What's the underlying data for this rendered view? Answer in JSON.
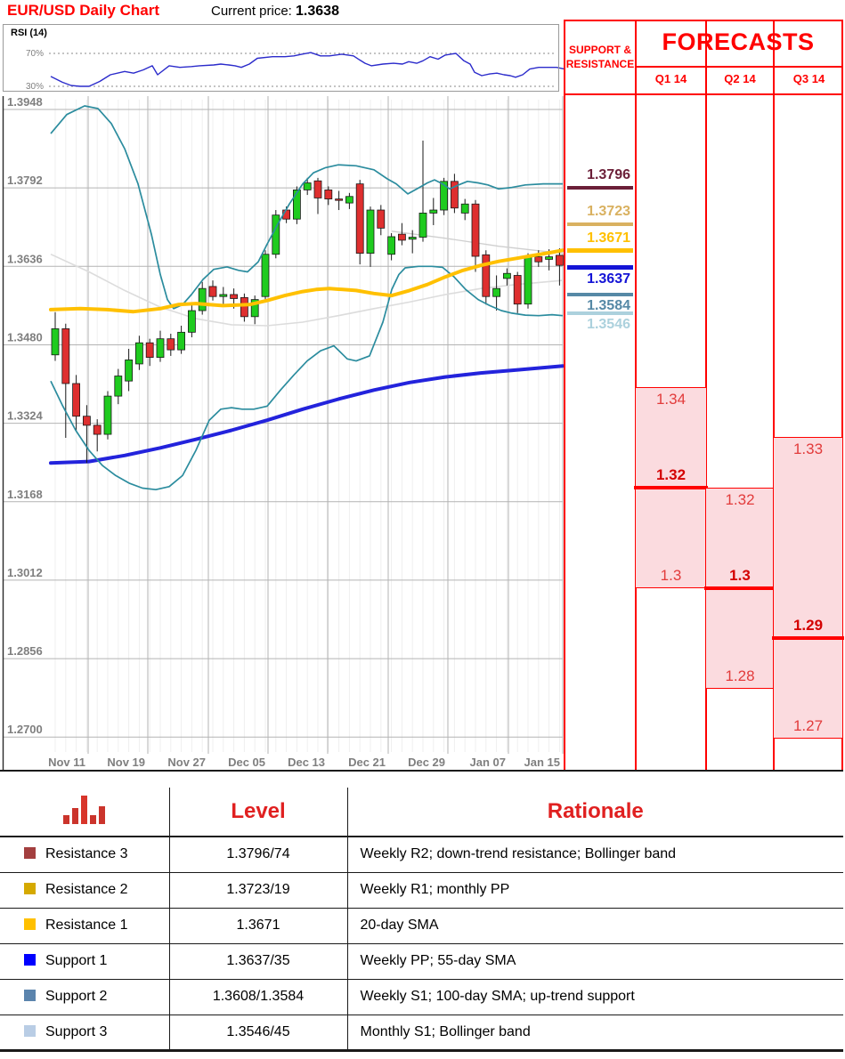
{
  "header": {
    "title": "EUR/USD Daily Chart",
    "current_price_label": "Current price:",
    "current_price": "1.3638"
  },
  "rsi": {
    "label": "RSI (14)",
    "upper_label": "70%",
    "lower_label": "30%",
    "upper": 70,
    "lower": 30,
    "line_color": "#2B2BCB",
    "points": [
      [
        57,
        42
      ],
      [
        70,
        35
      ],
      [
        80,
        31
      ],
      [
        90,
        30
      ],
      [
        100,
        30
      ],
      [
        112,
        36
      ],
      [
        124,
        44
      ],
      [
        140,
        48
      ],
      [
        150,
        46
      ],
      [
        161,
        50
      ],
      [
        171,
        55
      ],
      [
        177,
        44
      ],
      [
        190,
        55
      ],
      [
        202,
        53
      ],
      [
        215,
        54
      ],
      [
        224,
        55
      ],
      [
        240,
        56
      ],
      [
        248,
        57
      ],
      [
        257,
        56
      ],
      [
        264,
        55
      ],
      [
        271,
        53
      ],
      [
        280,
        57
      ],
      [
        289,
        64
      ],
      [
        306,
        66
      ],
      [
        320,
        66
      ],
      [
        330,
        67
      ],
      [
        339,
        69
      ],
      [
        349,
        71
      ],
      [
        360,
        67
      ],
      [
        370,
        67
      ],
      [
        384,
        69
      ],
      [
        397,
        67
      ],
      [
        404,
        62
      ],
      [
        410,
        58
      ],
      [
        417,
        55
      ],
      [
        430,
        57
      ],
      [
        442,
        58
      ],
      [
        452,
        57
      ],
      [
        459,
        60
      ],
      [
        468,
        58
      ],
      [
        475,
        61
      ],
      [
        483,
        66
      ],
      [
        492,
        63
      ],
      [
        500,
        68
      ],
      [
        512,
        70
      ],
      [
        521,
        61
      ],
      [
        528,
        57
      ],
      [
        533,
        47
      ],
      [
        541,
        43
      ],
      [
        550,
        45
      ],
      [
        558,
        46
      ],
      [
        566,
        44
      ],
      [
        573,
        43
      ],
      [
        579,
        41
      ],
      [
        587,
        44
      ],
      [
        595,
        51
      ],
      [
        605,
        53
      ],
      [
        615,
        53
      ],
      [
        625,
        53
      ],
      [
        634,
        51
      ]
    ]
  },
  "chart_data": {
    "type": "candlestick",
    "title": "EUR/USD Daily Chart",
    "y_axis": {
      "ticks": [
        1.3948,
        1.3792,
        1.3636,
        1.348,
        1.3324,
        1.3168,
        1.3012,
        1.2856,
        1.27
      ],
      "tick_labels": [
        "1.3948",
        "1.3792",
        "1.3636",
        "1.3480",
        "1.3324",
        "1.3168",
        "1.3012",
        "1.2856",
        "1.2700"
      ],
      "min": 1.27,
      "max": 1.3948
    },
    "x_axis": {
      "labels": [
        "Nov 11",
        "Nov 19",
        "Nov 27",
        "Dec 05",
        "Dec 13",
        "Dec 21",
        "Dec 29",
        "Jan 07",
        "Jan 15"
      ]
    },
    "colors": {
      "up": "#1FCB1F",
      "down": "#DE2F2F",
      "wick": "#1a1a1a",
      "sma20": "#FFC000",
      "sma55": "#2323DC",
      "sma100": "#DCDCDC",
      "bollinger": "#2B8C9E",
      "grid": "#B3B3B3",
      "grid_faint": "#EFEFEF",
      "axis_text": "#7F7F7F"
    },
    "candles": [
      [
        1.346,
        1.3545,
        1.3448,
        1.3512
      ],
      [
        1.3512,
        1.3522,
        1.3295,
        1.3403
      ],
      [
        1.3403,
        1.342,
        1.3308,
        1.3338
      ],
      [
        1.3338,
        1.336,
        1.3245,
        1.332
      ],
      [
        1.332,
        1.3332,
        1.3268,
        1.3302
      ],
      [
        1.3302,
        1.3388,
        1.3292,
        1.3378
      ],
      [
        1.3378,
        1.3432,
        1.3362,
        1.3418
      ],
      [
        1.3408,
        1.3472,
        1.3388,
        1.345
      ],
      [
        1.3442,
        1.3498,
        1.343,
        1.3484
      ],
      [
        1.3484,
        1.3492,
        1.3438,
        1.3455
      ],
      [
        1.3455,
        1.3508,
        1.3446,
        1.3492
      ],
      [
        1.3492,
        1.3502,
        1.3458,
        1.347
      ],
      [
        1.347,
        1.3518,
        1.3462,
        1.3505
      ],
      [
        1.3505,
        1.3562,
        1.3495,
        1.3548
      ],
      [
        1.3548,
        1.3605,
        1.354,
        1.3592
      ],
      [
        1.3596,
        1.3608,
        1.3568,
        1.3576
      ],
      [
        1.3576,
        1.3595,
        1.3558,
        1.358
      ],
      [
        1.358,
        1.3592,
        1.3552,
        1.3572
      ],
      [
        1.3574,
        1.3582,
        1.3526,
        1.3536
      ],
      [
        1.3536,
        1.3578,
        1.3521,
        1.357
      ],
      [
        1.3576,
        1.3668,
        1.357,
        1.366
      ],
      [
        1.366,
        1.3748,
        1.3652,
        1.3738
      ],
      [
        1.3748,
        1.3755,
        1.3722,
        1.373
      ],
      [
        1.373,
        1.3795,
        1.372,
        1.3788
      ],
      [
        1.3788,
        1.3812,
        1.3778,
        1.3802
      ],
      [
        1.3806,
        1.3812,
        1.374,
        1.3772
      ],
      [
        1.3788,
        1.3795,
        1.3758,
        1.377
      ],
      [
        1.377,
        1.3786,
        1.3748,
        1.3768
      ],
      [
        1.3762,
        1.3782,
        1.375,
        1.3775
      ],
      [
        1.38,
        1.3808,
        1.364,
        1.3662
      ],
      [
        1.3662,
        1.3755,
        1.3635,
        1.3748
      ],
      [
        1.3748,
        1.3758,
        1.3698,
        1.3712
      ],
      [
        1.366,
        1.3702,
        1.3648,
        1.3695
      ],
      [
        1.37,
        1.3722,
        1.3678,
        1.3688
      ],
      [
        1.369,
        1.3708,
        1.3662,
        1.3694
      ],
      [
        1.3694,
        1.3886,
        1.3685,
        1.3742
      ],
      [
        1.3742,
        1.3772,
        1.3718,
        1.3748
      ],
      [
        1.3748,
        1.3812,
        1.3738,
        1.3805
      ],
      [
        1.3805,
        1.382,
        1.3742,
        1.3752
      ],
      [
        1.3742,
        1.377,
        1.3728,
        1.376
      ],
      [
        1.376,
        1.3768,
        1.3625,
        1.3656
      ],
      [
        1.3659,
        1.3668,
        1.356,
        1.3576
      ],
      [
        1.3576,
        1.3618,
        1.3548,
        1.3592
      ],
      [
        1.3612,
        1.3632,
        1.3598,
        1.3622
      ],
      [
        1.3618,
        1.3625,
        1.3543,
        1.3561
      ],
      [
        1.3561,
        1.3662,
        1.3552,
        1.3655
      ],
      [
        1.3655,
        1.3668,
        1.3635,
        1.3645
      ],
      [
        1.365,
        1.367,
        1.3628,
        1.3655
      ],
      [
        1.3658,
        1.3672,
        1.3598,
        1.3638
      ]
    ],
    "overlays": {
      "sma20": [
        [
          57,
          1.355
        ],
        [
          90,
          1.3552
        ],
        [
          120,
          1.355
        ],
        [
          150,
          1.3546
        ],
        [
          180,
          1.3552
        ],
        [
          200,
          1.356
        ],
        [
          220,
          1.3562
        ],
        [
          250,
          1.3558
        ],
        [
          280,
          1.356
        ],
        [
          300,
          1.3568
        ],
        [
          320,
          1.3578
        ],
        [
          340,
          1.3586
        ],
        [
          355,
          1.359
        ],
        [
          370,
          1.3592
        ],
        [
          385,
          1.359
        ],
        [
          400,
          1.3588
        ],
        [
          420,
          1.3582
        ],
        [
          440,
          1.3578
        ],
        [
          460,
          1.3588
        ],
        [
          480,
          1.36
        ],
        [
          500,
          1.3615
        ],
        [
          520,
          1.3628
        ],
        [
          540,
          1.3638
        ],
        [
          560,
          1.3646
        ],
        [
          580,
          1.3652
        ],
        [
          600,
          1.3658
        ],
        [
          620,
          1.3664
        ],
        [
          632,
          1.3668
        ]
      ],
      "sma55": [
        [
          57,
          1.3245
        ],
        [
          100,
          1.3248
        ],
        [
          140,
          1.326
        ],
        [
          180,
          1.3275
        ],
        [
          220,
          1.3292
        ],
        [
          260,
          1.331
        ],
        [
          300,
          1.333
        ],
        [
          340,
          1.3352
        ],
        [
          380,
          1.3372
        ],
        [
          420,
          1.339
        ],
        [
          460,
          1.3405
        ],
        [
          500,
          1.3416
        ],
        [
          540,
          1.3424
        ],
        [
          580,
          1.343
        ],
        [
          632,
          1.3438
        ]
      ],
      "sma100": [
        [
          57,
          1.366
        ],
        [
          100,
          1.3625
        ],
        [
          140,
          1.3588
        ],
        [
          180,
          1.3555
        ],
        [
          220,
          1.3532
        ],
        [
          260,
          1.352
        ],
        [
          300,
          1.3518
        ],
        [
          340,
          1.3525
        ],
        [
          380,
          1.3538
        ],
        [
          420,
          1.3552
        ],
        [
          460,
          1.3565
        ],
        [
          500,
          1.358
        ],
        [
          540,
          1.3592
        ],
        [
          580,
          1.36
        ],
        [
          632,
          1.3608
        ]
      ],
      "trend": [
        [
          440,
          1.3706
        ],
        [
          500,
          1.3692
        ],
        [
          560,
          1.3676
        ],
        [
          600,
          1.3668
        ],
        [
          632,
          1.3662
        ]
      ],
      "boll_upper": [
        [
          57,
          1.39
        ],
        [
          75,
          1.3938
        ],
        [
          95,
          1.3955
        ],
        [
          110,
          1.395
        ],
        [
          125,
          1.392
        ],
        [
          140,
          1.387
        ],
        [
          155,
          1.38
        ],
        [
          170,
          1.37
        ],
        [
          180,
          1.362
        ],
        [
          188,
          1.357
        ],
        [
          195,
          1.3552
        ],
        [
          205,
          1.356
        ],
        [
          215,
          1.358
        ],
        [
          228,
          1.361
        ],
        [
          240,
          1.363
        ],
        [
          255,
          1.3635
        ],
        [
          268,
          1.3628
        ],
        [
          278,
          1.3625
        ],
        [
          290,
          1.3645
        ],
        [
          300,
          1.368
        ],
        [
          312,
          1.372
        ],
        [
          325,
          1.376
        ],
        [
          340,
          1.38
        ],
        [
          352,
          1.3822
        ],
        [
          365,
          1.3832
        ],
        [
          380,
          1.3838
        ],
        [
          400,
          1.3836
        ],
        [
          420,
          1.3828
        ],
        [
          435,
          1.381
        ],
        [
          445,
          1.38
        ],
        [
          458,
          1.378
        ],
        [
          470,
          1.3792
        ],
        [
          480,
          1.3802
        ],
        [
          488,
          1.3808
        ],
        [
          497,
          1.38
        ],
        [
          505,
          1.379
        ],
        [
          515,
          1.3798
        ],
        [
          525,
          1.3805
        ],
        [
          537,
          1.3802
        ],
        [
          548,
          1.3798
        ],
        [
          560,
          1.379
        ],
        [
          575,
          1.3793
        ],
        [
          590,
          1.3798
        ],
        [
          610,
          1.38
        ],
        [
          632,
          1.38
        ]
      ],
      "boll_lower": [
        [
          57,
          1.3408
        ],
        [
          70,
          1.336
        ],
        [
          85,
          1.331
        ],
        [
          100,
          1.327
        ],
        [
          115,
          1.324
        ],
        [
          130,
          1.322
        ],
        [
          145,
          1.3205
        ],
        [
          160,
          1.3195
        ],
        [
          175,
          1.3192
        ],
        [
          190,
          1.3198
        ],
        [
          205,
          1.322
        ],
        [
          220,
          1.327
        ],
        [
          235,
          1.333
        ],
        [
          248,
          1.3352
        ],
        [
          260,
          1.3355
        ],
        [
          272,
          1.3352
        ],
        [
          285,
          1.3352
        ],
        [
          300,
          1.3358
        ],
        [
          315,
          1.339
        ],
        [
          330,
          1.342
        ],
        [
          345,
          1.3448
        ],
        [
          360,
          1.3468
        ],
        [
          375,
          1.3478
        ],
        [
          390,
          1.3452
        ],
        [
          400,
          1.3448
        ],
        [
          415,
          1.3458
        ],
        [
          430,
          1.3525
        ],
        [
          440,
          1.359
        ],
        [
          448,
          1.362
        ],
        [
          455,
          1.3633
        ],
        [
          470,
          1.3636
        ],
        [
          485,
          1.3636
        ],
        [
          497,
          1.3634
        ],
        [
          510,
          1.3615
        ],
        [
          523,
          1.359
        ],
        [
          537,
          1.357
        ],
        [
          550,
          1.3558
        ],
        [
          563,
          1.3548
        ],
        [
          575,
          1.3543
        ],
        [
          590,
          1.3539
        ],
        [
          605,
          1.3538
        ],
        [
          620,
          1.354
        ],
        [
          632,
          1.3538
        ]
      ]
    }
  },
  "side_panel": {
    "sr_header": "SUPPORT & RESISTANCE",
    "levels": [
      {
        "label": "1.3796",
        "price": 1.3796,
        "color": "#6B1F38",
        "position": "above",
        "thickness": 4
      },
      {
        "label": "1.3723",
        "price": 1.3723,
        "color": "#D9B160",
        "position": "above",
        "thickness": 4
      },
      {
        "label": "1.3671",
        "price": 1.3671,
        "color": "#FFC000",
        "position": "above",
        "thickness": 5
      },
      {
        "label": "1.3637",
        "price": 1.3637,
        "color": "#1414D6",
        "position": "below",
        "thickness": 5
      },
      {
        "label": "1.3584",
        "price": 1.3584,
        "color": "#5689A6",
        "position": "below",
        "thickness": 4
      },
      {
        "label": "1.3546",
        "price": 1.3546,
        "color": "#ACD1DD",
        "position": "below",
        "thickness": 4
      }
    ]
  },
  "forecasts": {
    "header": "FORECASTS",
    "quarters": [
      {
        "label": "Q1 14",
        "range_top": 1.34,
        "range_bottom": 1.3,
        "pivot": 1.32,
        "top_label": "1.34",
        "bottom_label": "1.3",
        "pivot_label": "1.32"
      },
      {
        "label": "Q2 14",
        "range_top": 1.32,
        "range_bottom": 1.28,
        "pivot": 1.3,
        "top_label": "1.32",
        "bottom_label": "1.28",
        "pivot_label": "1.3"
      },
      {
        "label": "Q3 14",
        "range_top": 1.33,
        "range_bottom": 1.27,
        "pivot": 1.29,
        "top_label": "1.33",
        "bottom_label": "1.27",
        "pivot_label": "1.29"
      }
    ],
    "box_fill": "#FBDBDF",
    "box_border": "#FF0000"
  },
  "table": {
    "icon": "bar-chart-icon",
    "level_header": "Level",
    "rationale_header": "Rationale",
    "rows": [
      {
        "name": "Resistance 3",
        "square_color": "#A33F3F",
        "level": "1.3796/74",
        "rationale": "Weekly R2; down-trend resistance; Bollinger band"
      },
      {
        "name": "Resistance 2",
        "square_color": "#D5A900",
        "level": "1.3723/19",
        "rationale": "Weekly R1; monthly PP"
      },
      {
        "name": "Resistance 1",
        "square_color": "#FFC000",
        "level": "1.3671",
        "rationale": "20-day SMA"
      },
      {
        "name": "Support 1",
        "square_color": "#0000FF",
        "level": "1.3637/35",
        "rationale": "Weekly PP; 55-day SMA"
      },
      {
        "name": "Support 2",
        "square_color": "#5B84AD",
        "level": "1.3608/1.3584",
        "rationale": "Weekly S1; 100-day SMA; up-trend support"
      },
      {
        "name": "Support 3",
        "square_color": "#B9CDE5",
        "level": "1.3546/45",
        "rationale": "Monthly S1; Bollinger band"
      }
    ]
  }
}
